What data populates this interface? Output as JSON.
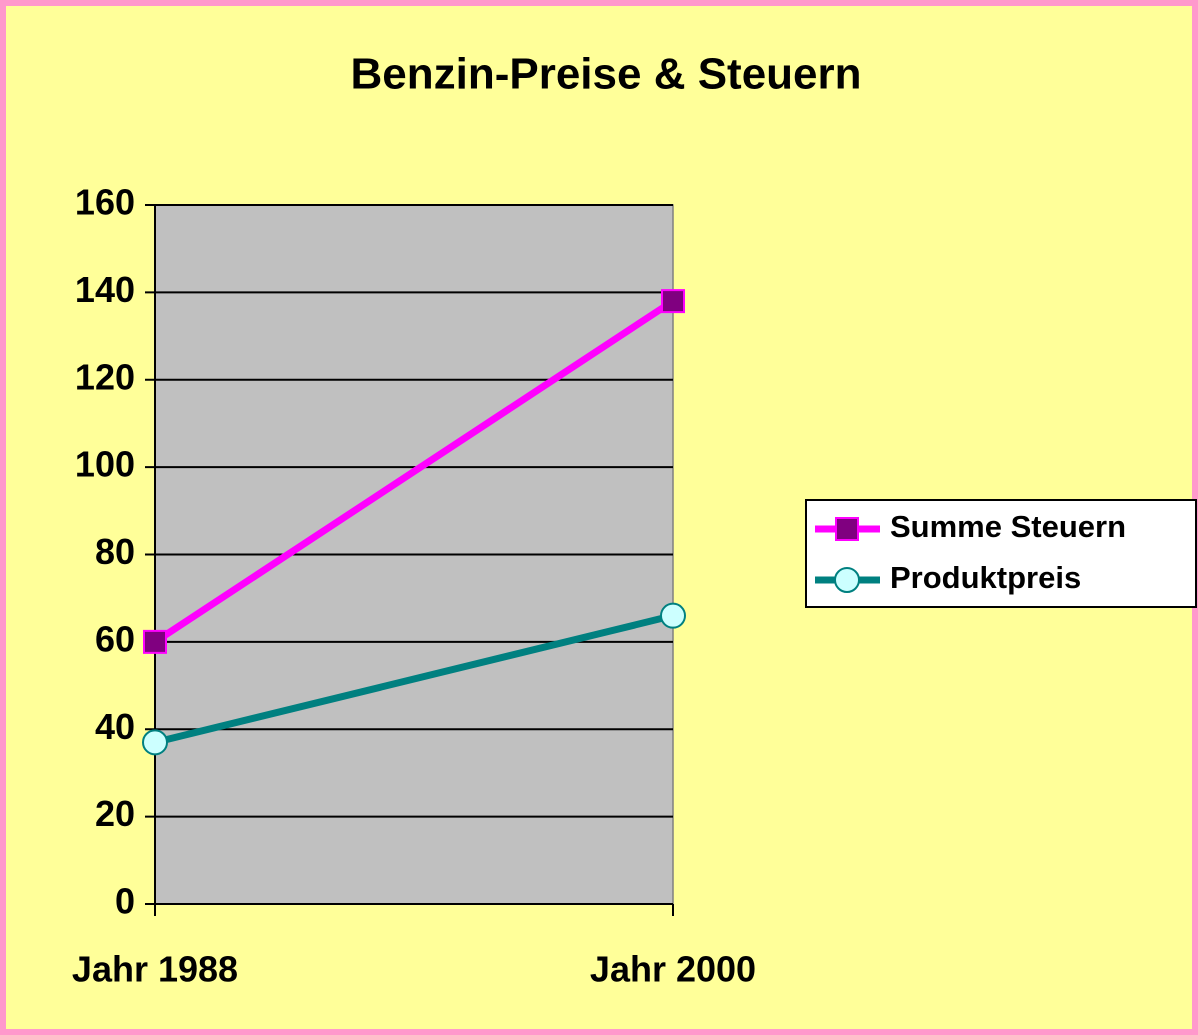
{
  "chart_data": {
    "type": "line",
    "title": "Benzin-Preise & Steuern",
    "categories": [
      "Jahr 1988",
      "Jahr 2000"
    ],
    "series": [
      {
        "name": "Summe Steuern",
        "color": "#ff00ff",
        "marker": "square",
        "marker_fill": "#800080",
        "values": [
          60,
          138
        ]
      },
      {
        "name": "Produktpreis",
        "color": "#008080",
        "marker": "circle",
        "marker_fill": "#ccffff",
        "values": [
          37,
          66
        ]
      }
    ],
    "ylim": [
      0,
      160
    ],
    "yticks": [
      0,
      20,
      40,
      60,
      80,
      100,
      120,
      140,
      160
    ],
    "grid": true,
    "legend": "right"
  }
}
